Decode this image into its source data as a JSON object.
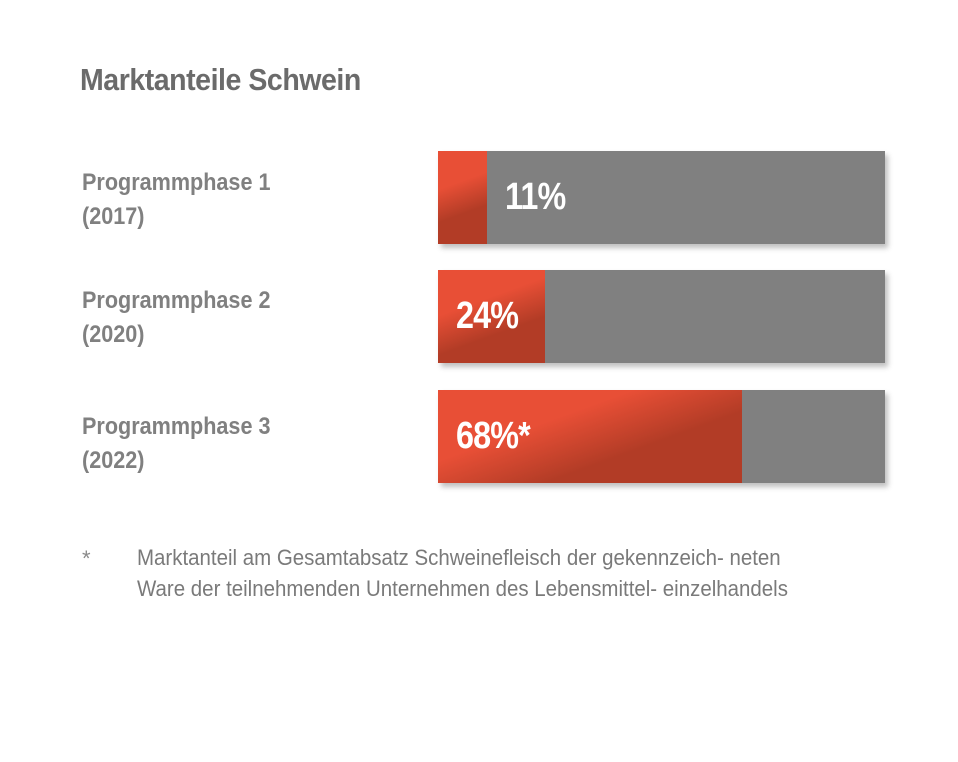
{
  "chart_data": {
    "type": "bar",
    "orientation": "horizontal",
    "title": "Marktanteile Schwein",
    "categories": [
      "Programmphase 1 (2017)",
      "Programmphase 2 (2020)",
      "Programmphase 3 (2022)"
    ],
    "category_lines": [
      [
        "Programmphase 1",
        "(2017)"
      ],
      [
        "Programmphase 2",
        "(2020)"
      ],
      [
        "Programmphase 3",
        "(2022)"
      ]
    ],
    "values": [
      11,
      24,
      68
    ],
    "value_labels": [
      "11%",
      "24%",
      "68%*"
    ],
    "unit": "%",
    "xlim": [
      0,
      100
    ],
    "colors": {
      "fill": "#e84f36",
      "fill_dark": "#b23c26",
      "remainder": "#808080"
    },
    "legend": "none",
    "grid": false
  },
  "footnote": {
    "marker": "*",
    "text": "Marktanteil am Gesamtabsatz Schweinefleisch der gekennzeich- neten Ware der teilnehmenden Unternehmen des Lebensmittel- einzelhandels"
  }
}
